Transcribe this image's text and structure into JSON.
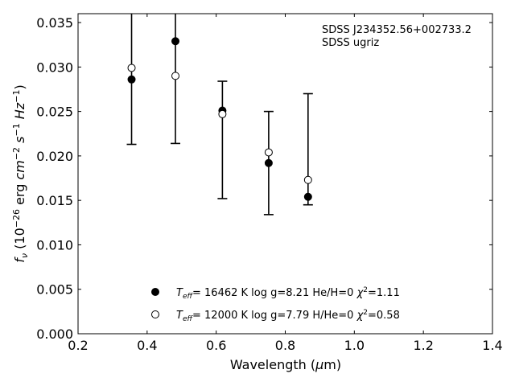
{
  "chart_data": {
    "type": "scatter",
    "xlabel": "Wavelength (μm)",
    "ylabel": "f_ν (10^-26 erg cm^-2 s^-1 Hz^-1)",
    "xlim": [
      0.2,
      1.4
    ],
    "ylim": [
      0.0,
      0.036
    ],
    "xticks": [
      0.2,
      0.4,
      0.6,
      0.8,
      1.0,
      1.2,
      1.4
    ],
    "xtick_labels": [
      "0.2",
      "0.4",
      "0.6",
      "0.8",
      "1.0",
      "1.2",
      "1.4"
    ],
    "yticks": [
      0.0,
      0.005,
      0.01,
      0.015,
      0.02,
      0.025,
      0.03,
      0.035
    ],
    "ytick_labels": [
      "0.000",
      "0.005",
      "0.010",
      "0.015",
      "0.020",
      "0.025",
      "0.030",
      "0.035"
    ],
    "grid": false,
    "legend_position": "lower-center",
    "annotation": [
      "SDSS J234352.56+002733.2",
      "SDSS ugriz"
    ],
    "observed": {
      "x": [
        0.355,
        0.482,
        0.618,
        0.752,
        0.866
      ],
      "y_low": [
        0.0213,
        0.0214,
        0.0152,
        0.0134,
        0.0145
      ],
      "y_high": [
        0.037,
        0.037,
        0.0284,
        0.025,
        0.027
      ]
    },
    "series": [
      {
        "name": "T_eff= 16462 K  log g=8.21  He/H=0  χ²=1.11",
        "marker": "filled-circle",
        "color": "#000000",
        "x": [
          0.355,
          0.482,
          0.618,
          0.752,
          0.866
        ],
        "y": [
          0.0286,
          0.0329,
          0.0251,
          0.0192,
          0.0154
        ]
      },
      {
        "name": "T_eff= 12000 K  log g=7.79  H/He=0  χ²=0.58",
        "marker": "open-circle",
        "color": "#000000",
        "x": [
          0.355,
          0.482,
          0.618,
          0.752,
          0.866
        ],
        "y": [
          0.0299,
          0.029,
          0.0247,
          0.0204,
          0.0173
        ]
      }
    ]
  }
}
